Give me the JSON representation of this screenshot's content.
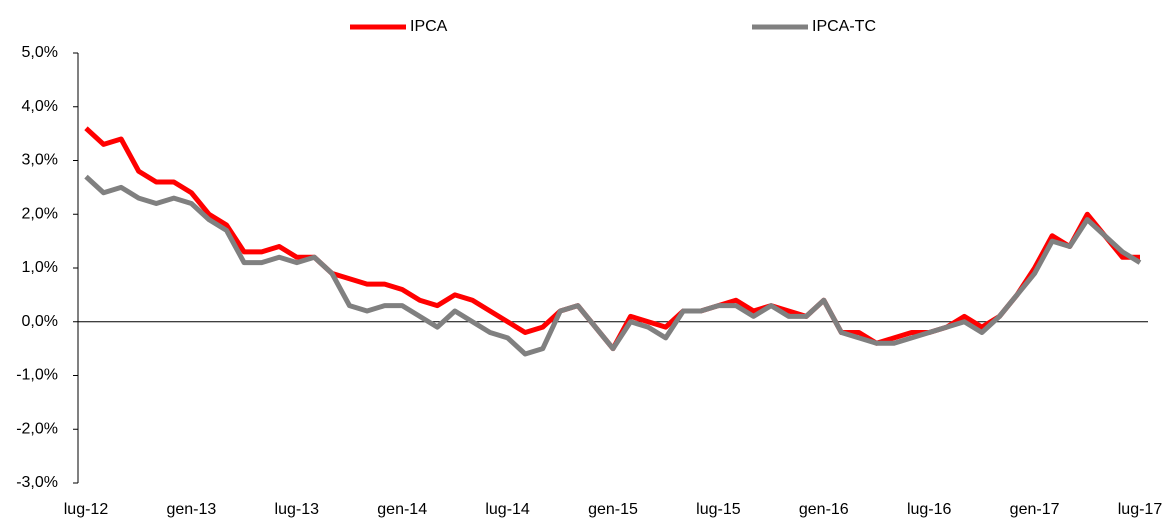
{
  "chart_data": {
    "type": "line",
    "categories": [
      "lug-12",
      null,
      null,
      null,
      null,
      null,
      "gen-13",
      null,
      null,
      null,
      null,
      null,
      "lug-13",
      null,
      null,
      null,
      null,
      null,
      "gen-14",
      null,
      null,
      null,
      null,
      null,
      "lug-14",
      null,
      null,
      null,
      null,
      null,
      "gen-15",
      null,
      null,
      null,
      null,
      null,
      "lug-15",
      null,
      null,
      null,
      null,
      null,
      "gen-16",
      null,
      null,
      null,
      null,
      null,
      "lug-16",
      null,
      null,
      null,
      null,
      null,
      "gen-17",
      null,
      null,
      null,
      null,
      null,
      "lug-17"
    ],
    "series": [
      {
        "name": "IPCA",
        "color": "#ff0000",
        "values": [
          3.6,
          3.3,
          3.4,
          2.8,
          2.6,
          2.6,
          2.4,
          2.0,
          1.8,
          1.3,
          1.3,
          1.4,
          1.2,
          1.2,
          0.9,
          0.8,
          0.7,
          0.7,
          0.6,
          0.4,
          0.3,
          0.5,
          0.4,
          0.2,
          0.0,
          -0.2,
          -0.1,
          0.2,
          0.3,
          -0.1,
          -0.5,
          0.1,
          0.0,
          -0.1,
          0.2,
          0.2,
          0.3,
          0.4,
          0.2,
          0.3,
          0.2,
          0.1,
          0.4,
          -0.2,
          -0.2,
          -0.4,
          -0.3,
          -0.2,
          -0.2,
          -0.1,
          0.1,
          -0.1,
          0.1,
          0.5,
          1.0,
          1.6,
          1.4,
          2.0,
          1.6,
          1.2,
          1.2
        ]
      },
      {
        "name": "IPCA-TC",
        "color": "#808080",
        "values": [
          2.7,
          2.4,
          2.5,
          2.3,
          2.2,
          2.3,
          2.2,
          1.9,
          1.7,
          1.1,
          1.1,
          1.2,
          1.1,
          1.2,
          0.9,
          0.3,
          0.2,
          0.3,
          0.3,
          0.1,
          -0.1,
          0.2,
          0.0,
          -0.2,
          -0.3,
          -0.6,
          -0.5,
          0.2,
          0.3,
          -0.1,
          -0.5,
          0.0,
          -0.1,
          -0.3,
          0.2,
          0.2,
          0.3,
          0.3,
          0.1,
          0.3,
          0.1,
          0.1,
          0.4,
          -0.2,
          -0.3,
          -0.4,
          -0.4,
          -0.3,
          -0.2,
          -0.1,
          0.0,
          -0.2,
          0.1,
          0.5,
          0.9,
          1.5,
          1.4,
          1.9,
          1.6,
          1.3,
          1.1
        ]
      }
    ],
    "ylim": [
      -3,
      5
    ],
    "yticks": [
      {
        "value": -3,
        "label": "-3,0%"
      },
      {
        "value": -2,
        "label": "-2,0%"
      },
      {
        "value": -1,
        "label": "-1,0%"
      },
      {
        "value": 0,
        "label": "0,0%"
      },
      {
        "value": 1,
        "label": "1,0%"
      },
      {
        "value": 2,
        "label": "2,0%"
      },
      {
        "value": 3,
        "label": "3,0%"
      },
      {
        "value": 4,
        "label": "4,0%"
      },
      {
        "value": 5,
        "label": "5,0%"
      }
    ],
    "legend": "top",
    "grid": false
  }
}
